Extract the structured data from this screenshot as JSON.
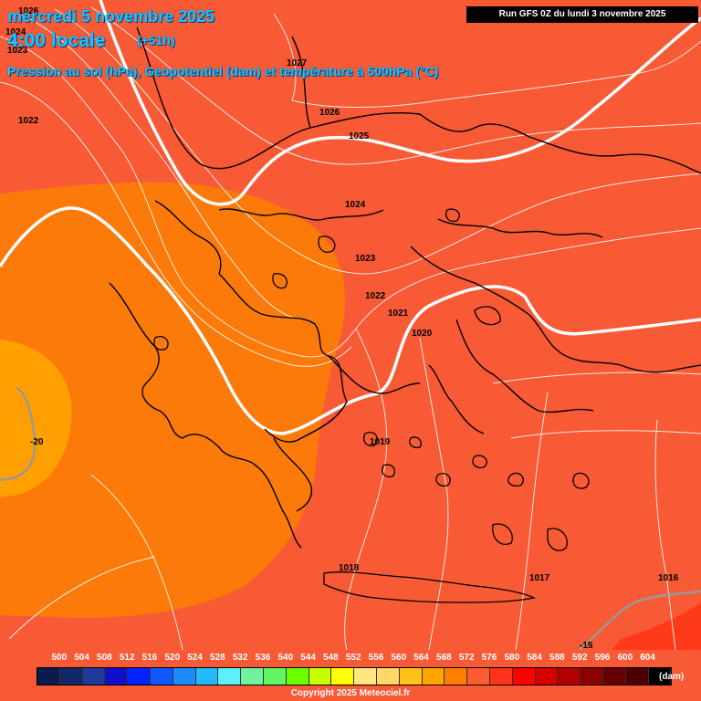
{
  "header": {
    "date": "mercredi 5 novembre 2025",
    "time": "4:00 locale",
    "lead": "(+51h)",
    "params": "Pression au sol (hPa), Geopotentiel (dam) et température à 500hPa (°C)",
    "run": "Run GFS 0Z du lundi 3 novembre 2025"
  },
  "isobar_labels": {
    "p1026a": "1026",
    "p1024a": "1024",
    "p1023a": "1023",
    "p1022a": "1022",
    "p1027": "1027",
    "p1026b": "1026",
    "p1025": "1025",
    "p1024b": "1024",
    "p1023b": "1023",
    "p1022b": "1022",
    "p1021": "1021",
    "p1020": "1020",
    "p1019": "1019",
    "p1018": "1018",
    "p1017": "1017",
    "p1016": "1016"
  },
  "temp_labels": {
    "t_minus20": "-20",
    "t_minus15": "-15"
  },
  "legend": {
    "ticks": [
      "500",
      "504",
      "508",
      "512",
      "516",
      "520",
      "524",
      "528",
      "532",
      "536",
      "540",
      "544",
      "548",
      "552",
      "556",
      "560",
      "564",
      "568",
      "572",
      "576",
      "580",
      "584",
      "588",
      "592",
      "596",
      "600",
      "604"
    ],
    "colors": [
      "#0c1a4d",
      "#132766",
      "#1b3a99",
      "#1010cc",
      "#0022ff",
      "#1158ff",
      "#1a8cff",
      "#22bbff",
      "#5cf0ff",
      "#6ef2a0",
      "#62f565",
      "#6bff00",
      "#c6ff00",
      "#ffff00",
      "#ffe680",
      "#ffd866",
      "#ffc21a",
      "#ffa400",
      "#ff8000",
      "#ff5c33",
      "#ff3319",
      "#ff0000",
      "#d60000",
      "#b20000",
      "#8c0000",
      "#660000",
      "#4c0000",
      "#000000"
    ],
    "unit": "(dam)"
  },
  "copyright": "Copyright 2025 Meteociel.fr",
  "colors": {
    "geo_576": "#f85a35",
    "geo_572": "#fb7a0a",
    "geo_568": "#ff9d00",
    "coast": "#000000",
    "isotherm": "#999999"
  }
}
